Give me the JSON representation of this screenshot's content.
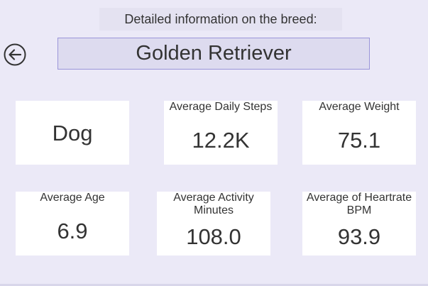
{
  "header": {
    "heading": "Detailed information on the breed:",
    "breed_name": "Golden Retriever"
  },
  "navigation": {
    "back_icon": "arrow-left-circle-icon"
  },
  "cards": {
    "animal": {
      "value": "Dog"
    },
    "daily_steps": {
      "label": "Average Daily Steps",
      "value": "12.2K"
    },
    "weight": {
      "label": "Average Weight",
      "value": "75.1"
    },
    "age": {
      "label": "Average Age",
      "value": "6.9"
    },
    "activity": {
      "label": "Average Activity Minutes",
      "value": "108.0"
    },
    "heartrate": {
      "label": "Average of Heartrate BPM",
      "value": "93.9"
    }
  },
  "colors": {
    "background": "#ebe9f7",
    "card": "#ffffff",
    "title_border": "#9a95d9",
    "text": "#333333"
  }
}
